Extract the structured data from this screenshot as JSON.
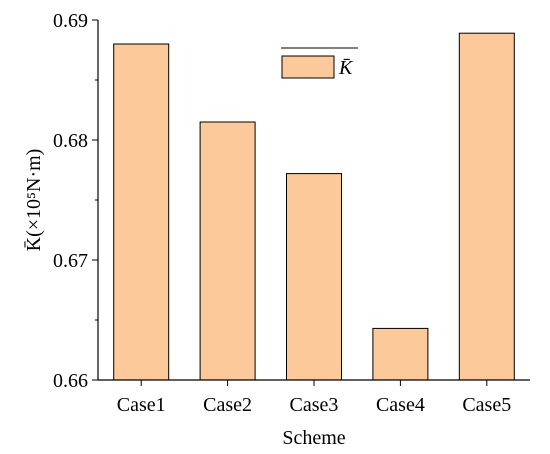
{
  "chart_data": {
    "type": "bar",
    "categories": [
      "Case1",
      "Case2",
      "Case3",
      "Case4",
      "Case5"
    ],
    "series": [
      {
        "name": "K̄",
        "values": [
          0.688,
          0.6815,
          0.6772,
          0.6643,
          0.6889
        ]
      }
    ],
    "xlabel": "Scheme",
    "ylabel": "K̄(×10⁵N·m)",
    "ylim": [
      0.66,
      0.69
    ],
    "yticks": [
      "0.66",
      "0.67",
      "0.68",
      "0.69"
    ],
    "grid": false,
    "legend_position": "top-center",
    "colors": {
      "bar_fill": "#fcc99a",
      "bar_stroke": "#000000",
      "axis": "#000000"
    }
  }
}
